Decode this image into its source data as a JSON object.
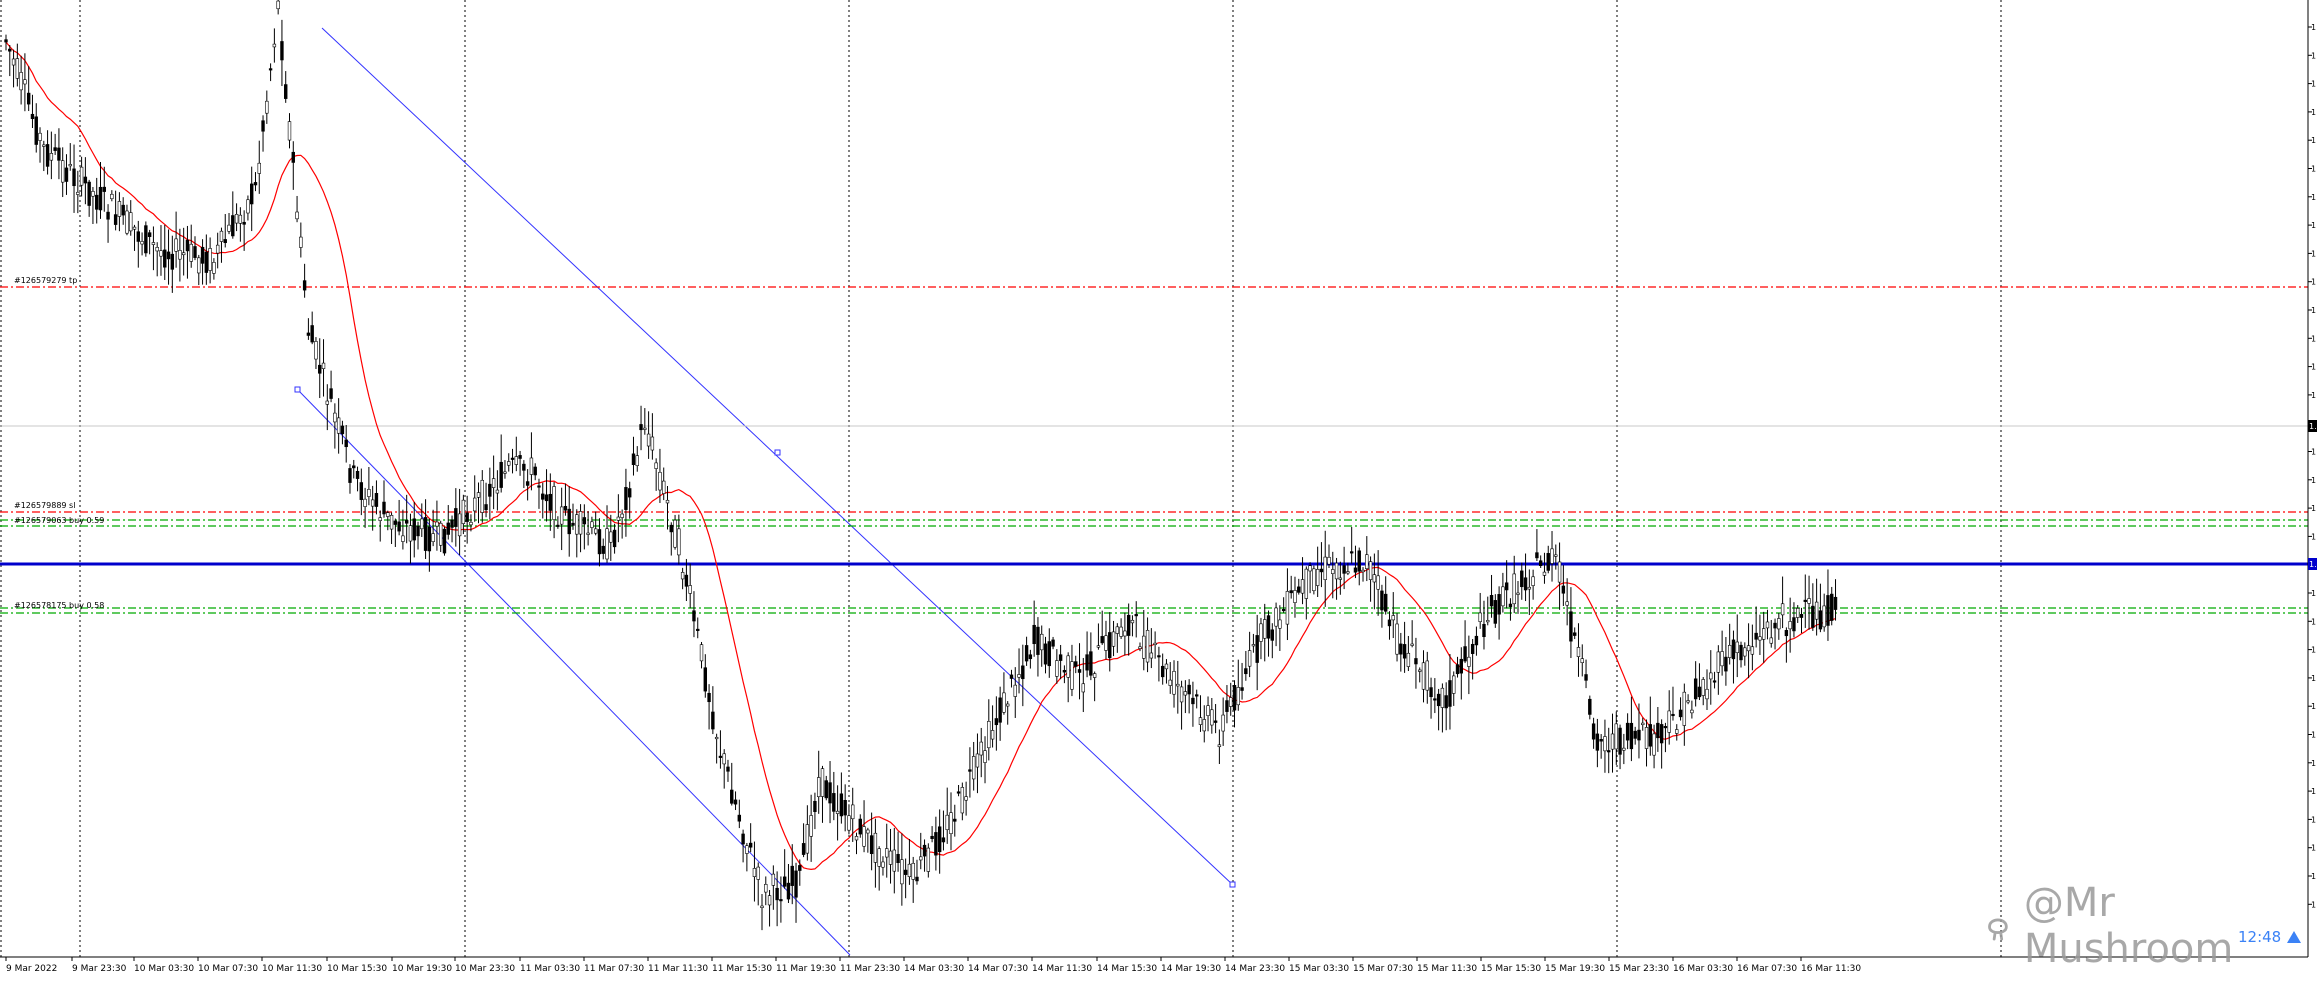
{
  "chart_data": {
    "type": "candlestick",
    "x_tick_labels": [
      "9 Mar 2022",
      "9 Mar 23:30",
      "10 Mar 03:30",
      "10 Mar 07:30",
      "10 Mar 11:30",
      "10 Mar 15:30",
      "10 Mar 19:30",
      "10 Mar 23:30",
      "11 Mar 03:30",
      "11 Mar 07:30",
      "11 Mar 11:30",
      "11 Mar 15:30",
      "11 Mar 19:30",
      "11 Mar 23:30",
      "14 Mar 03:30",
      "14 Mar 07:30",
      "14 Mar 11:30",
      "14 Mar 15:30",
      "14 Mar 19:30",
      "14 Mar 23:30",
      "15 Mar 03:30",
      "15 Mar 07:30",
      "15 Mar 11:30",
      "15 Mar 15:30",
      "15 Mar 19:30",
      "15 Mar 23:30",
      "16 Mar 03:30",
      "16 Mar 07:30",
      "16 Mar 11:30"
    ],
    "y_axis_labels": [
      "1.",
      "1.",
      "1.",
      "1.",
      "1.",
      "1.",
      "1.",
      "1.",
      "1.",
      "1.",
      "1.",
      "1.",
      "1.",
      "1.",
      "1.",
      "1.",
      "1.",
      "1.",
      "1.",
      "1.",
      "1.",
      "1.",
      "1.",
      "1.",
      "1.",
      "1.",
      "1.",
      "1.",
      "1.",
      "1.",
      "1.",
      "1."
    ],
    "current_price_tag": "1.",
    "support_price_tag": "1.",
    "order_labels": [
      "#126579279 tp",
      "#126579889 sl",
      "#126579063 buy 0.59",
      "#126578175 buy 0.58"
    ],
    "series": [
      {
        "name": "price",
        "kind": "candles"
      },
      {
        "name": "moving-average",
        "kind": "line",
        "color": "#ff0000"
      }
    ],
    "colors": {
      "bull": "#ffffff",
      "bear": "#000000",
      "support": "#0000cc",
      "channel": "#3333ff",
      "sl_tp": "#ff0000",
      "order": "#00aa00"
    },
    "grid": "vertical-dotted"
  },
  "watermark": {
    "text": "@Mr Mushroom"
  },
  "timer": {
    "text": "12:48"
  }
}
